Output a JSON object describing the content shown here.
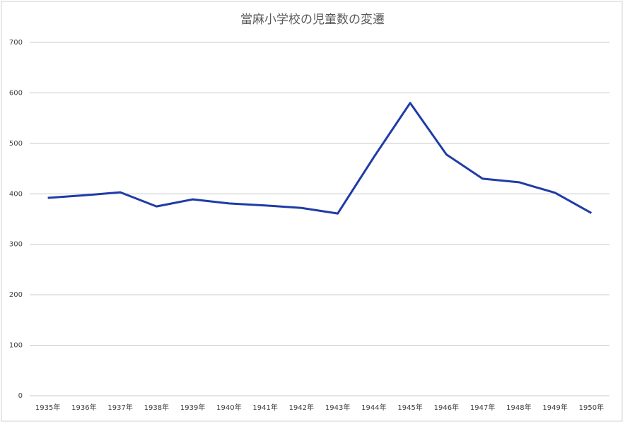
{
  "chart_data": {
    "type": "line",
    "title": "當麻小学校の児童数の変遷",
    "categories": [
      "1935年",
      "1936年",
      "1937年",
      "1938年",
      "1939年",
      "1940年",
      "1941年",
      "1942年",
      "1943年",
      "1944年",
      "1945年",
      "1946年",
      "1947年",
      "1948年",
      "1949年",
      "1950年"
    ],
    "values": [
      392,
      397,
      403,
      375,
      389,
      381,
      377,
      372,
      361,
      473,
      580,
      478,
      430,
      423,
      402,
      362
    ],
    "color": "#1f3ca6",
    "ylim": [
      0,
      700
    ],
    "yticks": [
      0,
      100,
      200,
      300,
      400,
      500,
      600,
      700
    ],
    "grid": true
  }
}
